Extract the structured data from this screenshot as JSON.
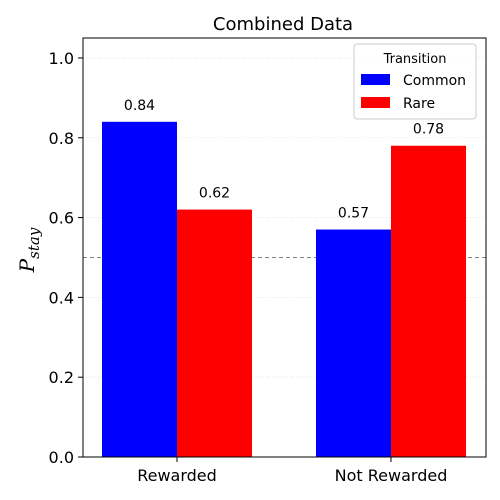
{
  "chart_data": {
    "type": "bar",
    "title": "Combined Data",
    "xlabel": "",
    "ylabel_main": "P",
    "ylabel_sub": "stay",
    "categories": [
      "Rewarded",
      "Not Rewarded"
    ],
    "series": [
      {
        "name": "Common",
        "values": [
          0.84,
          0.57
        ],
        "color": "#0000ff"
      },
      {
        "name": "Rare",
        "values": [
          0.62,
          0.78
        ],
        "color": "#ff0000"
      }
    ],
    "data_labels": [
      [
        "0.84",
        "0.57"
      ],
      [
        "0.62",
        "0.78"
      ]
    ],
    "ylim": [
      0.0,
      1.05
    ],
    "yticks": [
      0.0,
      0.2,
      0.4,
      0.6,
      0.8,
      1.0
    ],
    "ytick_labels": [
      "0.0",
      "0.2",
      "0.4",
      "0.6",
      "0.8",
      "1.0"
    ],
    "reference_line": {
      "y": 0.5,
      "style": "dashed",
      "color": "#808080"
    },
    "grid": {
      "y": true,
      "style": "dotted"
    },
    "legend": {
      "title": "Transition",
      "placement": "top-right"
    }
  }
}
